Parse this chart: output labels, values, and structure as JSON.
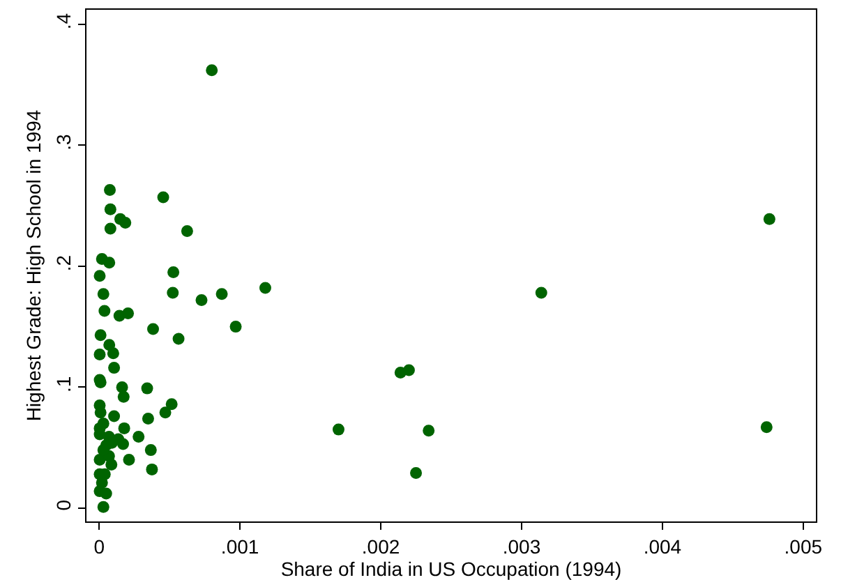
{
  "chart_data": {
    "type": "scatter",
    "xlabel": "Share of India in US Occupation (1994)",
    "ylabel": "Highest Grade: High School in 1994",
    "xlim": [
      -9e-05,
      0.00509
    ],
    "ylim": [
      -0.011,
      0.412
    ],
    "xticks": [
      {
        "value": 0,
        "label": "0"
      },
      {
        "value": 0.001,
        "label": ".001"
      },
      {
        "value": 0.002,
        "label": ".002"
      },
      {
        "value": 0.003,
        "label": ".003"
      },
      {
        "value": 0.004,
        "label": ".004"
      },
      {
        "value": 0.005,
        "label": ".005"
      }
    ],
    "yticks": [
      {
        "value": 0,
        "label": "0"
      },
      {
        "value": 0.1,
        "label": ".1"
      },
      {
        "value": 0.2,
        "label": ".2"
      },
      {
        "value": 0.3,
        "label": ".3"
      },
      {
        "value": 0.4,
        "label": ".4"
      }
    ],
    "grid": false,
    "marker": "circle",
    "series": [
      {
        "color": "#006400",
        "x": [
          0.0008,
          0.00476,
          0.00314,
          0.00474,
          0.0017,
          0.00234,
          0.00225,
          0.00214,
          0.0022,
          0.000455,
          0.000625,
          0.000527,
          0.000523,
          0.000727,
          0.000871,
          0.00118,
          0.00097,
          0.000383,
          0.000564,
          0.000341,
          0.000515,
          0.00047,
          0.000348,
          0.00028,
          0.000367,
          0.000375,
          7.6e-05,
          8e-05,
          8e-05,
          0.00015,
          0.000186,
          2e-05,
          7.2e-05,
          4e-06,
          3e-05,
          3.8e-05,
          0.000144,
          0.000205,
          1e-05,
          7.2e-05,
          0.0001,
          4e-06,
          0.000106,
          4e-06,
          1e-05,
          0.000163,
          0.000174,
          4e-06,
          0.000106,
          1e-05,
          3e-05,
          0.000178,
          4e-06,
          0.000136,
          0.00017,
          4e-06,
          7e-05,
          0.000212,
          8.7e-05,
          4e-06,
          9e-05,
          5e-05,
          4e-06,
          4e-05,
          4e-06,
          5e-05,
          3e-05,
          2e-05,
          7e-05,
          3e-05
        ],
        "values": [
          0.362,
          0.239,
          0.178,
          0.067,
          0.065,
          0.064,
          0.029,
          0.112,
          0.114,
          0.257,
          0.229,
          0.195,
          0.178,
          0.172,
          0.177,
          0.182,
          0.15,
          0.148,
          0.14,
          0.099,
          0.086,
          0.079,
          0.074,
          0.059,
          0.048,
          0.032,
          0.263,
          0.247,
          0.231,
          0.239,
          0.236,
          0.206,
          0.203,
          0.192,
          0.177,
          0.163,
          0.159,
          0.161,
          0.143,
          0.135,
          0.128,
          0.127,
          0.116,
          0.106,
          0.104,
          0.1,
          0.092,
          0.085,
          0.076,
          0.079,
          0.07,
          0.066,
          0.066,
          0.057,
          0.053,
          0.061,
          0.059,
          0.04,
          0.036,
          0.04,
          0.054,
          0.052,
          0.028,
          0.028,
          0.014,
          0.012,
          0.001,
          0.021,
          0.043,
          0.048
        ]
      }
    ]
  }
}
